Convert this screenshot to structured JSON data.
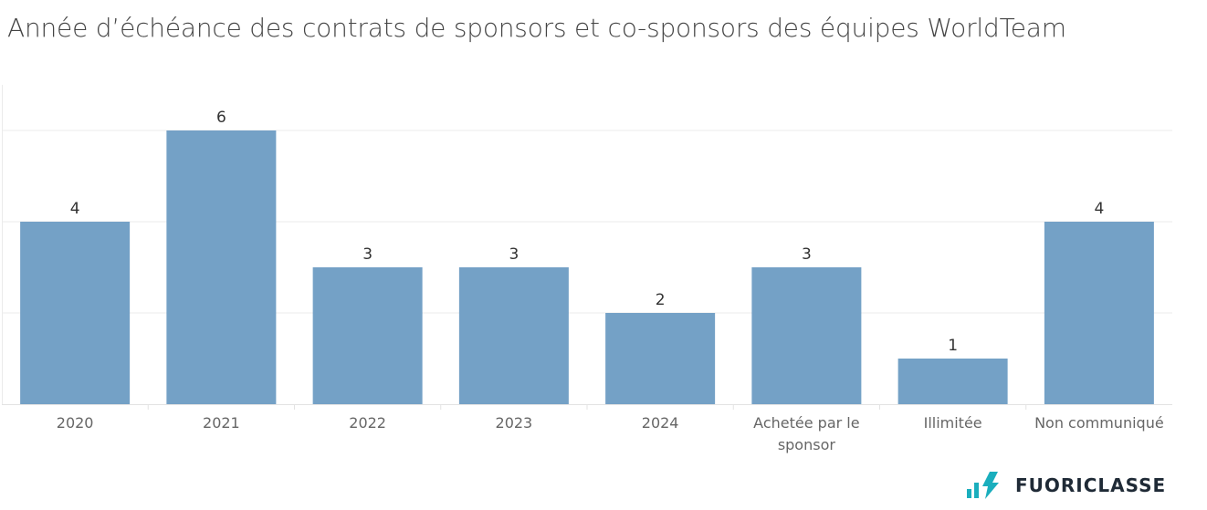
{
  "brand": {
    "name": "FUORICLASSE",
    "logo_colors": [
      "#1aaebd",
      "#1f2a36"
    ]
  },
  "chart_data": {
    "type": "bar",
    "title": "Année d’échéance des contrats de sponsors et co-sponsors des équipes WorldTeam",
    "categories": [
      "2020",
      "2021",
      "2022",
      "2023",
      "2024",
      "Achetée par le sponsor",
      "Illimitée",
      "Non communiqué"
    ],
    "values": [
      4,
      6,
      3,
      3,
      2,
      3,
      1,
      4
    ],
    "xlabel": "",
    "ylabel": "",
    "ylim": [
      0,
      7
    ],
    "grid": true,
    "bar_color": "#74a1c6"
  }
}
